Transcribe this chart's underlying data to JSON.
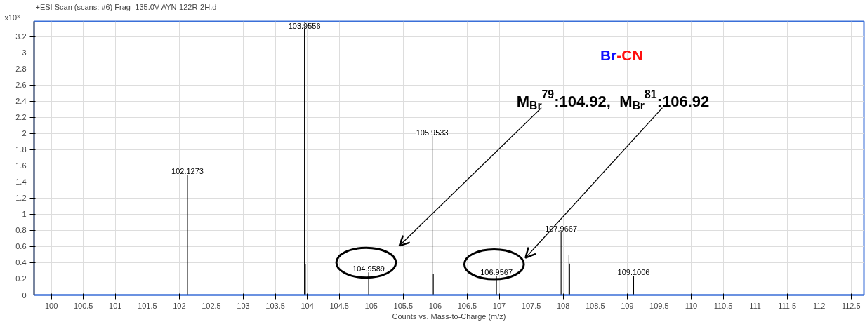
{
  "chart_data": {
    "type": "bar",
    "title": "+ESI Scan (scans: #6) Frag=135.0V AYN-122R-2H.d",
    "xlabel": "Counts vs. Mass-to-Charge (m/z)",
    "ylabel": "x10³",
    "x": [
      102.1273,
      103.9556,
      103.97,
      104.9589,
      105.9533,
      105.97,
      106.9567,
      107.9667,
      108.09,
      108.1,
      109.1006
    ],
    "values": [
      1.49,
      3.38,
      0.38,
      0.28,
      1.97,
      0.26,
      0.24,
      0.78,
      0.5,
      0.39,
      0.24
    ],
    "color": "#000000",
    "xlim": [
      99.73,
      112.7
    ],
    "ylim": [
      0,
      3.39
    ],
    "xticks": [
      100,
      100.5,
      101,
      101.5,
      102,
      102.5,
      103,
      103.5,
      104,
      104.5,
      105,
      105.5,
      106,
      106.5,
      107,
      107.5,
      108,
      108.5,
      109,
      109.5,
      110,
      110.5,
      111,
      111.5,
      112,
      112.5
    ],
    "yticks": [
      0,
      0.2,
      0.4,
      0.6,
      0.8,
      1,
      1.2,
      1.4,
      1.6,
      1.8,
      2,
      2.2,
      2.4,
      2.6,
      2.8,
      3,
      3.2
    ],
    "grid": true,
    "annotations": [
      "Br-CN",
      "M$_{Br}$$^{79}$:104.92,  M$_{Br}$$^{81}$:106.92",
      {
        "text": "102.1273",
        "x": 102.1273,
        "y": 1.49
      },
      {
        "text": "103.9556",
        "x": 103.9556,
        "y": 3.38
      },
      {
        "text": "104.9589",
        "x": 104.9589,
        "y": 0.28
      },
      {
        "text": "105.9533",
        "x": 105.9533,
        "y": 1.97
      },
      {
        "text": "106.9567",
        "x": 106.9567,
        "y": 0.24
      },
      {
        "text": "107.9667",
        "x": 107.9667,
        "y": 0.78
      },
      {
        "text": "109.1006",
        "x": 109.1006,
        "y": 0.24
      }
    ]
  }
}
